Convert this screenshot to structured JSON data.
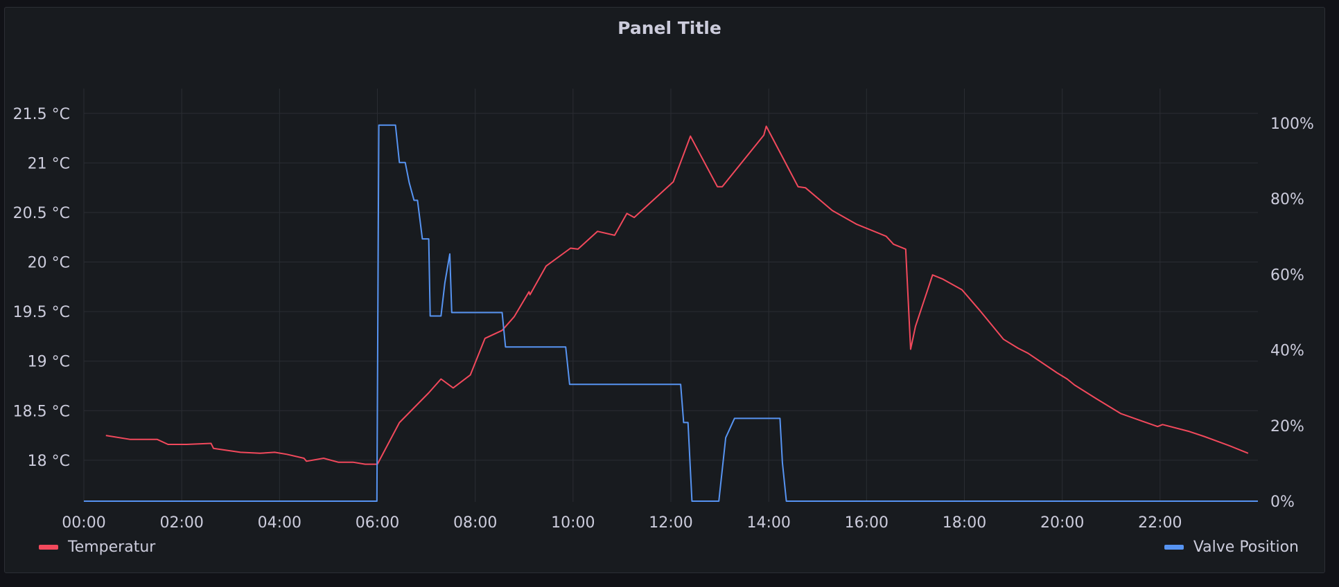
{
  "panel": {
    "title": "Panel Title"
  },
  "colors": {
    "temperature": "#f2495c",
    "valve": "#5794f2",
    "grid": "#2a2d33",
    "text": "#ccccdc"
  },
  "legend": [
    {
      "label": "Temperatur",
      "color": "#f2495c"
    },
    {
      "label": "Valve Position",
      "color": "#5794f2"
    }
  ],
  "chart_data": {
    "type": "line",
    "x_unit": "hours",
    "xlim": [
      0,
      24
    ],
    "x_ticks": [
      {
        "v": 0,
        "label": "00:00"
      },
      {
        "v": 2,
        "label": "02:00"
      },
      {
        "v": 4,
        "label": "04:00"
      },
      {
        "v": 6,
        "label": "06:00"
      },
      {
        "v": 8,
        "label": "08:00"
      },
      {
        "v": 10,
        "label": "10:00"
      },
      {
        "v": 12,
        "label": "12:00"
      },
      {
        "v": 14,
        "label": "14:00"
      },
      {
        "v": 16,
        "label": "16:00"
      },
      {
        "v": 18,
        "label": "18:00"
      },
      {
        "v": 20,
        "label": "20:00"
      },
      {
        "v": 22,
        "label": "22:00"
      }
    ],
    "y_left": {
      "ylim": [
        17.58,
        21.75
      ],
      "ticks": [
        {
          "v": 18,
          "label": "18 °C"
        },
        {
          "v": 18.5,
          "label": "18.5 °C"
        },
        {
          "v": 19,
          "label": "19 °C"
        },
        {
          "v": 19.5,
          "label": "19.5 °C"
        },
        {
          "v": 20,
          "label": "20 °C"
        },
        {
          "v": 20.5,
          "label": "20.5 °C"
        },
        {
          "v": 21,
          "label": "21 °C"
        },
        {
          "v": 21.5,
          "label": "21.5 °C"
        }
      ]
    },
    "y_right": {
      "ylim": [
        0,
        100
      ],
      "ticks": [
        {
          "v": 0,
          "label": "0%"
        },
        {
          "v": 20,
          "label": "20%"
        },
        {
          "v": 40,
          "label": "40%"
        },
        {
          "v": 60,
          "label": "60%"
        },
        {
          "v": 80,
          "label": "80%"
        },
        {
          "v": 100,
          "label": "100%"
        }
      ]
    },
    "grid": true,
    "legend_position": "bottom",
    "series": [
      {
        "name": "Temperatur",
        "axis": "left",
        "color": "#f2495c",
        "points": [
          [
            0.45,
            18.25
          ],
          [
            0.95,
            18.21
          ],
          [
            1.5,
            18.21
          ],
          [
            1.72,
            18.16
          ],
          [
            2.1,
            18.16
          ],
          [
            2.6,
            18.17
          ],
          [
            2.65,
            18.12
          ],
          [
            3.2,
            18.08
          ],
          [
            3.6,
            18.07
          ],
          [
            3.9,
            18.08
          ],
          [
            4.15,
            18.06
          ],
          [
            4.5,
            18.02
          ],
          [
            4.55,
            17.99
          ],
          [
            4.9,
            18.02
          ],
          [
            5.2,
            17.98
          ],
          [
            5.5,
            17.98
          ],
          [
            5.75,
            17.96
          ],
          [
            6.0,
            17.96
          ],
          [
            6.45,
            18.38
          ],
          [
            7.05,
            18.68
          ],
          [
            7.3,
            18.82
          ],
          [
            7.55,
            18.73
          ],
          [
            7.9,
            18.86
          ],
          [
            8.2,
            19.23
          ],
          [
            8.55,
            19.31
          ],
          [
            8.8,
            19.45
          ],
          [
            9.1,
            19.7
          ],
          [
            9.12,
            19.67
          ],
          [
            9.45,
            19.96
          ],
          [
            9.95,
            20.14
          ],
          [
            10.1,
            20.13
          ],
          [
            10.5,
            20.31
          ],
          [
            10.85,
            20.27
          ],
          [
            11.1,
            20.49
          ],
          [
            11.25,
            20.45
          ],
          [
            12.05,
            20.81
          ],
          [
            12.4,
            21.27
          ],
          [
            12.95,
            20.76
          ],
          [
            13.05,
            20.76
          ],
          [
            13.9,
            21.28
          ],
          [
            13.95,
            21.37
          ],
          [
            14.6,
            20.76
          ],
          [
            14.75,
            20.75
          ],
          [
            15.3,
            20.52
          ],
          [
            15.8,
            20.38
          ],
          [
            16.4,
            20.26
          ],
          [
            16.55,
            20.18
          ],
          [
            16.8,
            20.13
          ],
          [
            16.9,
            19.12
          ],
          [
            17.0,
            19.35
          ],
          [
            17.35,
            19.87
          ],
          [
            17.55,
            19.83
          ],
          [
            17.95,
            19.72
          ],
          [
            18.3,
            19.52
          ],
          [
            18.8,
            19.22
          ],
          [
            19.1,
            19.13
          ],
          [
            19.3,
            19.08
          ],
          [
            19.9,
            18.88
          ],
          [
            20.1,
            18.82
          ],
          [
            20.25,
            18.76
          ],
          [
            20.7,
            18.62
          ],
          [
            21.2,
            18.47
          ],
          [
            21.95,
            18.34
          ],
          [
            22.05,
            18.36
          ],
          [
            22.6,
            18.29
          ],
          [
            22.9,
            18.24
          ],
          [
            23.4,
            18.15
          ],
          [
            23.8,
            18.07
          ]
        ]
      },
      {
        "name": "Valve Position",
        "axis": "right",
        "color": "#5794f2",
        "points": [
          [
            0,
            0
          ],
          [
            5.99,
            0
          ],
          [
            6.03,
            99.5
          ],
          [
            6.37,
            99.5
          ],
          [
            6.45,
            89.6
          ],
          [
            6.57,
            89.6
          ],
          [
            6.65,
            84.3
          ],
          [
            6.75,
            79.6
          ],
          [
            6.82,
            79.6
          ],
          [
            6.92,
            69.4
          ],
          [
            7.05,
            69.4
          ],
          [
            7.08,
            49.0
          ],
          [
            7.3,
            49.0
          ],
          [
            7.38,
            57.8
          ],
          [
            7.48,
            65.4
          ],
          [
            7.52,
            49.9
          ],
          [
            8.05,
            49.9
          ],
          [
            8.55,
            49.9
          ],
          [
            8.62,
            40.8
          ],
          [
            9.6,
            40.8
          ],
          [
            9.85,
            40.8
          ],
          [
            9.93,
            30.9
          ],
          [
            11.9,
            30.9
          ],
          [
            12.2,
            30.9
          ],
          [
            12.26,
            20.8
          ],
          [
            12.35,
            20.8
          ],
          [
            12.43,
            0
          ],
          [
            12.98,
            0
          ],
          [
            13.12,
            16.8
          ],
          [
            13.3,
            21.9
          ],
          [
            13.95,
            21.9
          ],
          [
            14.23,
            21.9
          ],
          [
            14.28,
            10.2
          ],
          [
            14.36,
            0
          ],
          [
            16.5,
            0
          ],
          [
            24,
            0
          ]
        ]
      }
    ]
  }
}
